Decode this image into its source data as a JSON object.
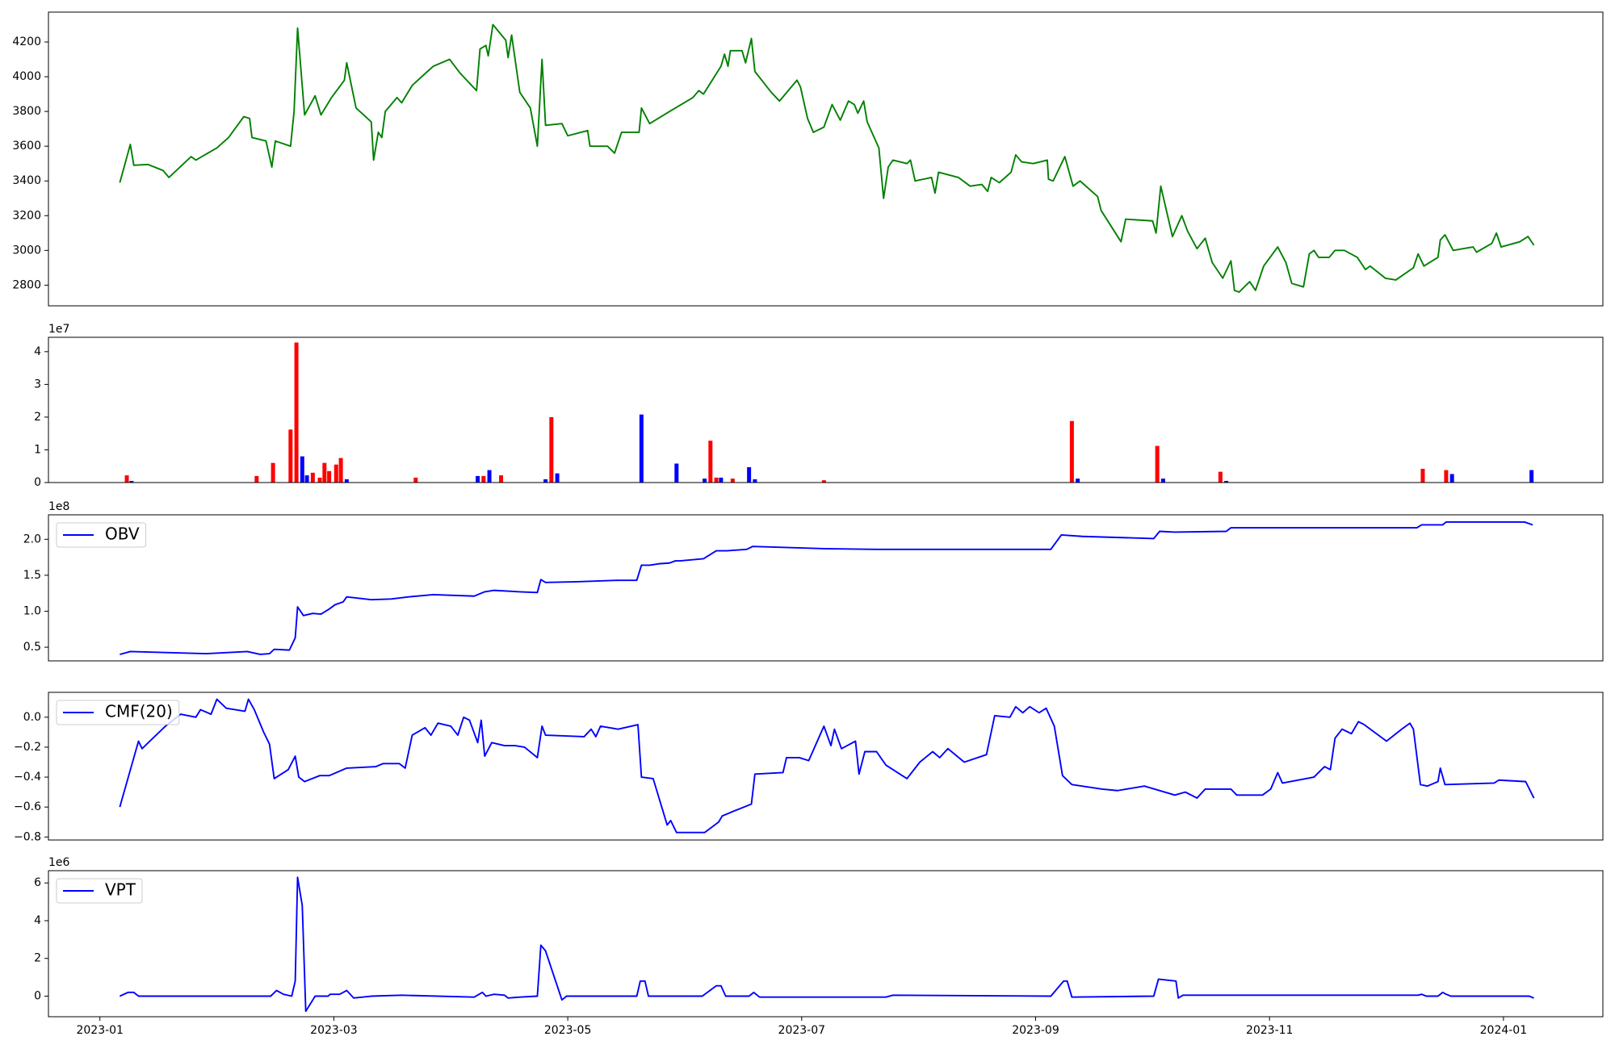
{
  "chart_data": [
    {
      "type": "line",
      "color": "#008000",
      "xlim": [
        0.56,
        13.85
      ],
      "ylim": [
        2681,
        4372
      ],
      "yticks": [
        2800,
        3000,
        3200,
        3400,
        3600,
        3800,
        4000,
        4200
      ],
      "x": [
        1.17,
        1.26,
        1.29,
        1.41,
        1.54,
        1.59,
        1.78,
        1.82,
        2.0,
        2.1,
        2.23,
        2.28,
        2.3,
        2.42,
        2.47,
        2.5,
        2.63,
        2.66,
        2.69,
        2.75,
        2.84,
        2.89,
        2.98,
        3.09,
        3.11,
        3.19,
        3.32,
        3.34,
        3.38,
        3.41,
        3.44,
        3.54,
        3.58,
        3.67,
        3.8,
        3.85,
        3.99,
        4.08,
        4.22,
        4.25,
        4.3,
        4.32,
        4.36,
        4.47,
        4.49,
        4.52,
        4.59,
        4.68,
        4.74,
        4.78,
        4.81,
        4.95,
        5.0,
        5.17,
        5.19,
        5.34,
        5.4,
        5.46,
        5.61,
        5.63,
        5.7,
        5.87,
        6.07,
        6.12,
        6.16,
        6.31,
        6.34,
        6.37,
        6.39,
        6.49,
        6.52,
        6.57,
        6.6,
        6.74,
        6.81,
        6.96,
        6.99,
        7.05,
        7.1,
        7.19,
        7.26,
        7.33,
        7.4,
        7.45,
        7.48,
        7.53,
        7.56,
        7.66,
        7.7,
        7.74,
        7.78,
        7.9,
        7.93,
        7.97,
        8.11,
        8.14,
        8.17,
        8.34,
        8.44,
        8.54,
        8.59,
        8.62,
        8.69,
        8.79,
        8.83,
        8.88,
        8.98,
        9.1,
        9.11,
        9.15,
        9.25,
        9.32,
        9.38,
        9.53,
        9.56,
        9.73,
        9.77,
        10.0,
        10.03,
        10.07,
        10.17,
        10.25,
        10.3,
        10.38,
        10.45,
        10.51,
        10.6,
        10.67,
        10.7,
        10.74,
        10.83,
        10.88,
        10.95,
        11.07,
        11.14,
        11.19,
        11.29,
        11.34,
        11.38,
        11.42,
        11.51,
        11.56,
        11.64,
        11.75,
        11.82,
        11.86,
        11.99,
        12.08,
        12.23,
        12.27,
        12.32,
        12.44,
        12.46,
        12.5,
        12.57,
        12.74,
        12.77,
        12.9,
        12.94,
        12.98,
        13.14,
        13.21,
        13.26
      ],
      "values": [
        3390,
        3610,
        3490,
        3495,
        3460,
        3420,
        3540,
        3520,
        3590,
        3650,
        3770,
        3760,
        3650,
        3630,
        3480,
        3630,
        3600,
        3800,
        4280,
        3780,
        3890,
        3780,
        3880,
        3980,
        4080,
        3820,
        3740,
        3520,
        3680,
        3650,
        3800,
        3880,
        3850,
        3950,
        4030,
        4060,
        4100,
        4020,
        3920,
        4160,
        4180,
        4120,
        4300,
        4210,
        4110,
        4240,
        3910,
        3820,
        3600,
        4100,
        3720,
        3730,
        3660,
        3690,
        3600,
        3600,
        3560,
        3680,
        3680,
        3820,
        3730,
        3800,
        3880,
        3920,
        3900,
        4060,
        4130,
        4060,
        4150,
        4150,
        4080,
        4220,
        4030,
        3910,
        3860,
        3980,
        3940,
        3760,
        3680,
        3710,
        3840,
        3750,
        3860,
        3840,
        3790,
        3860,
        3740,
        3590,
        3300,
        3480,
        3520,
        3500,
        3520,
        3400,
        3420,
        3330,
        3450,
        3420,
        3370,
        3380,
        3340,
        3420,
        3390,
        3450,
        3550,
        3510,
        3500,
        3520,
        3410,
        3400,
        3540,
        3370,
        3400,
        3310,
        3230,
        3050,
        3180,
        3170,
        3100,
        3370,
        3080,
        3200,
        3110,
        3010,
        3070,
        2930,
        2840,
        2940,
        2770,
        2760,
        2820,
        2770,
        2910,
        3020,
        2930,
        2810,
        2790,
        2980,
        3000,
        2960,
        2960,
        3000,
        3000,
        2960,
        2890,
        2910,
        2840,
        2830,
        2900,
        2980,
        2910,
        2960,
        3060,
        3090,
        3000,
        3020,
        2990,
        3040,
        3100,
        3020,
        3050,
        3080,
        3030
      ]
    },
    {
      "type": "bar",
      "offset_label": "1e7",
      "xlim": [
        0.56,
        13.85
      ],
      "ylim": [
        0,
        4.44
      ],
      "yticks": [
        0,
        1,
        2,
        3,
        4
      ],
      "x": [
        1.23,
        1.27,
        2.34,
        2.48,
        2.63,
        2.68,
        2.73,
        2.77,
        2.82,
        2.88,
        2.92,
        2.96,
        3.02,
        3.06,
        3.11,
        3.7,
        4.23,
        4.28,
        4.33,
        4.43,
        4.81,
        4.86,
        4.91,
        5.63,
        5.93,
        6.17,
        6.22,
        6.27,
        6.31,
        6.41,
        6.55,
        6.6,
        7.19,
        9.31,
        9.36,
        10.04,
        10.09,
        10.58,
        10.63,
        12.31,
        12.51,
        12.56,
        13.24
      ],
      "values": [
        0.22,
        0.05,
        0.2,
        0.6,
        1.62,
        4.28,
        0.8,
        0.22,
        0.3,
        0.15,
        0.6,
        0.35,
        0.55,
        0.75,
        0.1,
        0.15,
        0.2,
        0.2,
        0.38,
        0.22,
        0.1,
        2.0,
        0.28,
        2.08,
        0.58,
        0.12,
        1.28,
        0.15,
        0.15,
        0.12,
        0.47,
        0.1,
        0.07,
        1.88,
        0.12,
        1.12,
        0.12,
        0.33,
        0.05,
        0.42,
        0.38,
        0.26,
        0.38
      ],
      "colors": [
        "#ff0000",
        "#0000ff",
        "#ff0000",
        "#ff0000",
        "#ff0000",
        "#ff0000",
        "#0000ff",
        "#0000ff",
        "#ff0000",
        "#ff0000",
        "#ff0000",
        "#ff0000",
        "#ff0000",
        "#ff0000",
        "#0000ff",
        "#ff0000",
        "#0000ff",
        "#ff0000",
        "#0000ff",
        "#ff0000",
        "#0000ff",
        "#ff0000",
        "#0000ff",
        "#0000ff",
        "#0000ff",
        "#0000ff",
        "#ff0000",
        "#ff0000",
        "#0000ff",
        "#ff0000",
        "#0000ff",
        "#0000ff",
        "#ff0000",
        "#ff0000",
        "#0000ff",
        "#ff0000",
        "#0000ff",
        "#ff0000",
        "#0000ff",
        "#ff0000",
        "#ff0000",
        "#0000ff",
        "#0000ff"
      ]
    },
    {
      "type": "line",
      "offset_label": "1e8",
      "legend": "upper left",
      "xlim": [
        0.56,
        13.85
      ],
      "ylim": [
        0.31,
        2.34
      ],
      "yticks": [
        0.5,
        {
          "value": 1.0,
          "label": "1.0"
        },
        1.5,
        {
          "value": 2.0,
          "label": "2.0"
        }
      ],
      "x": [
        1.17,
        1.26,
        1.91,
        2.26,
        2.37,
        2.45,
        2.49,
        2.62,
        2.67,
        2.69,
        2.74,
        2.82,
        2.89,
        2.96,
        3.01,
        3.08,
        3.11,
        3.32,
        3.49,
        3.64,
        3.85,
        4.2,
        4.29,
        4.37,
        4.59,
        4.74,
        4.77,
        4.81,
        5.08,
        5.43,
        5.59,
        5.63,
        5.7,
        5.78,
        5.87,
        5.92,
        5.96,
        6.16,
        6.27,
        6.36,
        6.53,
        6.58,
        7.19,
        7.63,
        9.13,
        9.22,
        9.4,
        10.01,
        10.06,
        10.19,
        10.63,
        10.67,
        11.6,
        12.26,
        12.3,
        12.48,
        12.51,
        13.18,
        13.25
      ],
      "series": [
        {
          "name": "OBV",
          "color": "#0000ff",
          "values": [
            0.4,
            0.44,
            0.41,
            0.44,
            0.4,
            0.41,
            0.47,
            0.46,
            0.63,
            1.06,
            0.94,
            0.97,
            0.96,
            1.03,
            1.09,
            1.13,
            1.2,
            1.16,
            1.17,
            1.2,
            1.23,
            1.21,
            1.27,
            1.29,
            1.27,
            1.26,
            1.44,
            1.4,
            1.41,
            1.43,
            1.43,
            1.64,
            1.64,
            1.66,
            1.67,
            1.7,
            1.7,
            1.73,
            1.84,
            1.84,
            1.86,
            1.9,
            1.87,
            1.86,
            1.86,
            2.06,
            2.04,
            2.01,
            2.11,
            2.1,
            2.11,
            2.16,
            2.16,
            2.16,
            2.2,
            2.2,
            2.24,
            2.24,
            2.2
          ]
        }
      ]
    },
    {
      "type": "line",
      "legend": "upper left",
      "xlim": [
        0.56,
        13.85
      ],
      "ylim": [
        -0.82,
        0.166
      ],
      "yticks": [
        {
          "value": -0.8,
          "label": "−0.8"
        },
        {
          "value": -0.6,
          "label": "−0.6"
        },
        {
          "value": -0.4,
          "label": "−0.4"
        },
        {
          "value": -0.2,
          "label": "−0.2"
        },
        {
          "value": 0,
          "label": "0.0"
        }
      ],
      "x": [
        1.17,
        1.33,
        1.36,
        1.56,
        1.69,
        1.82,
        1.86,
        1.95,
        2.0,
        2.08,
        2.24,
        2.27,
        2.32,
        2.4,
        2.45,
        2.49,
        2.61,
        2.67,
        2.7,
        2.75,
        2.88,
        2.96,
        3.11,
        3.36,
        3.42,
        3.56,
        3.61,
        3.67,
        3.78,
        3.83,
        3.89,
        4.0,
        4.06,
        4.11,
        4.16,
        4.23,
        4.26,
        4.29,
        4.35,
        4.46,
        4.55,
        4.63,
        4.74,
        4.78,
        4.81,
        5.14,
        5.2,
        5.24,
        5.28,
        5.43,
        5.6,
        5.63,
        5.73,
        5.85,
        5.88,
        5.93,
        6.17,
        6.29,
        6.32,
        6.41,
        6.57,
        6.6,
        6.84,
        6.87,
        6.98,
        7.06,
        7.19,
        7.25,
        7.28,
        7.34,
        7.46,
        7.49,
        7.54,
        7.64,
        7.72,
        7.9,
        8.01,
        8.12,
        8.18,
        8.25,
        8.39,
        8.58,
        8.65,
        8.78,
        8.83,
        8.89,
        8.95,
        9.03,
        9.09,
        9.16,
        9.23,
        9.31,
        9.57,
        9.7,
        9.93,
        10.19,
        10.28,
        10.38,
        10.45,
        10.67,
        10.72,
        10.94,
        11.01,
        11.07,
        11.11,
        11.38,
        11.47,
        11.52,
        11.56,
        11.62,
        11.7,
        11.76,
        11.81,
        12.0,
        12.13,
        12.2,
        12.23,
        12.29,
        12.35,
        12.44,
        12.46,
        12.5,
        12.92,
        12.96,
        13.19,
        13.26
      ],
      "series": [
        {
          "name": "CMF(20)",
          "color": "#0000ff",
          "values": [
            -0.6,
            -0.16,
            -0.21,
            -0.06,
            0.02,
            0.0,
            0.05,
            0.02,
            0.12,
            0.06,
            0.04,
            0.12,
            0.05,
            -0.1,
            -0.18,
            -0.41,
            -0.35,
            -0.26,
            -0.4,
            -0.43,
            -0.39,
            -0.39,
            -0.34,
            -0.33,
            -0.31,
            -0.31,
            -0.34,
            -0.12,
            -0.07,
            -0.12,
            -0.04,
            -0.06,
            -0.12,
            0.0,
            -0.02,
            -0.17,
            -0.02,
            -0.26,
            -0.17,
            -0.19,
            -0.19,
            -0.2,
            -0.27,
            -0.06,
            -0.12,
            -0.13,
            -0.08,
            -0.13,
            -0.06,
            -0.08,
            -0.05,
            -0.4,
            -0.41,
            -0.72,
            -0.69,
            -0.77,
            -0.77,
            -0.7,
            -0.66,
            -0.63,
            -0.58,
            -0.38,
            -0.37,
            -0.27,
            -0.27,
            -0.29,
            -0.06,
            -0.19,
            -0.08,
            -0.21,
            -0.16,
            -0.38,
            -0.23,
            -0.23,
            -0.32,
            -0.41,
            -0.3,
            -0.23,
            -0.27,
            -0.21,
            -0.3,
            -0.25,
            0.01,
            0.0,
            0.07,
            0.03,
            0.07,
            0.03,
            0.06,
            -0.06,
            -0.39,
            -0.45,
            -0.48,
            -0.49,
            -0.46,
            -0.52,
            -0.5,
            -0.54,
            -0.48,
            -0.48,
            -0.52,
            -0.52,
            -0.48,
            -0.37,
            -0.44,
            -0.4,
            -0.33,
            -0.35,
            -0.14,
            -0.08,
            -0.11,
            -0.03,
            -0.05,
            -0.16,
            -0.08,
            -0.04,
            -0.08,
            -0.45,
            -0.46,
            -0.43,
            -0.34,
            -0.45,
            -0.44,
            -0.42,
            -0.43,
            -0.54
          ]
        }
      ]
    },
    {
      "type": "line",
      "offset_label": "1e6",
      "legend": "upper left",
      "xlim": [
        0.56,
        13.85
      ],
      "ylim": [
        -1.09,
        6.65
      ],
      "yticks": [
        0,
        2,
        4,
        6
      ],
      "xticks": [
        {
          "value": 1,
          "label": "2023-01"
        },
        {
          "value": 3,
          "label": "2023-03"
        },
        {
          "value": 5,
          "label": "2023-05"
        },
        {
          "value": 7,
          "label": "2023-07"
        },
        {
          "value": 9,
          "label": "2023-09"
        },
        {
          "value": 11,
          "label": "2023-11"
        },
        {
          "value": 13,
          "label": "2024-01"
        }
      ],
      "x": [
        1.17,
        1.24,
        1.29,
        1.33,
        2.35,
        2.46,
        2.51,
        2.57,
        2.64,
        2.67,
        2.69,
        2.73,
        2.76,
        2.84,
        2.95,
        2.97,
        3.05,
        3.11,
        3.17,
        3.32,
        3.58,
        4.2,
        4.27,
        4.3,
        4.37,
        4.46,
        4.49,
        4.59,
        4.74,
        4.77,
        4.81,
        4.95,
        4.99,
        5.59,
        5.62,
        5.66,
        5.69,
        6.15,
        6.27,
        6.31,
        6.35,
        6.55,
        6.59,
        6.64,
        7.72,
        7.78,
        9.13,
        9.24,
        9.27,
        9.31,
        10.01,
        10.05,
        10.2,
        10.22,
        10.26,
        12.27,
        12.3,
        12.34,
        12.44,
        12.48,
        12.51,
        12.55,
        13.22,
        13.26
      ],
      "series": [
        {
          "name": "VPT",
          "color": "#0000ff",
          "values": [
            0,
            0.2,
            0.2,
            0,
            0,
            0,
            0.3,
            0.1,
            0,
            0.8,
            6.3,
            4.8,
            -0.8,
            0,
            0,
            0.1,
            0.1,
            0.3,
            -0.1,
            0,
            0.05,
            -0.05,
            0.2,
            0,
            0.1,
            0.05,
            -0.1,
            -0.05,
            0,
            2.7,
            2.4,
            -0.2,
            0,
            0,
            0.8,
            0.8,
            0,
            0,
            0.55,
            0.55,
            0,
            0,
            0.2,
            -0.05,
            -0.05,
            0.05,
            0,
            0.8,
            0.8,
            -0.05,
            0,
            0.9,
            0.8,
            -0.1,
            0.05,
            0.05,
            0.1,
            0,
            0,
            0.2,
            0.1,
            0,
            0,
            -0.1
          ]
        }
      ]
    }
  ]
}
